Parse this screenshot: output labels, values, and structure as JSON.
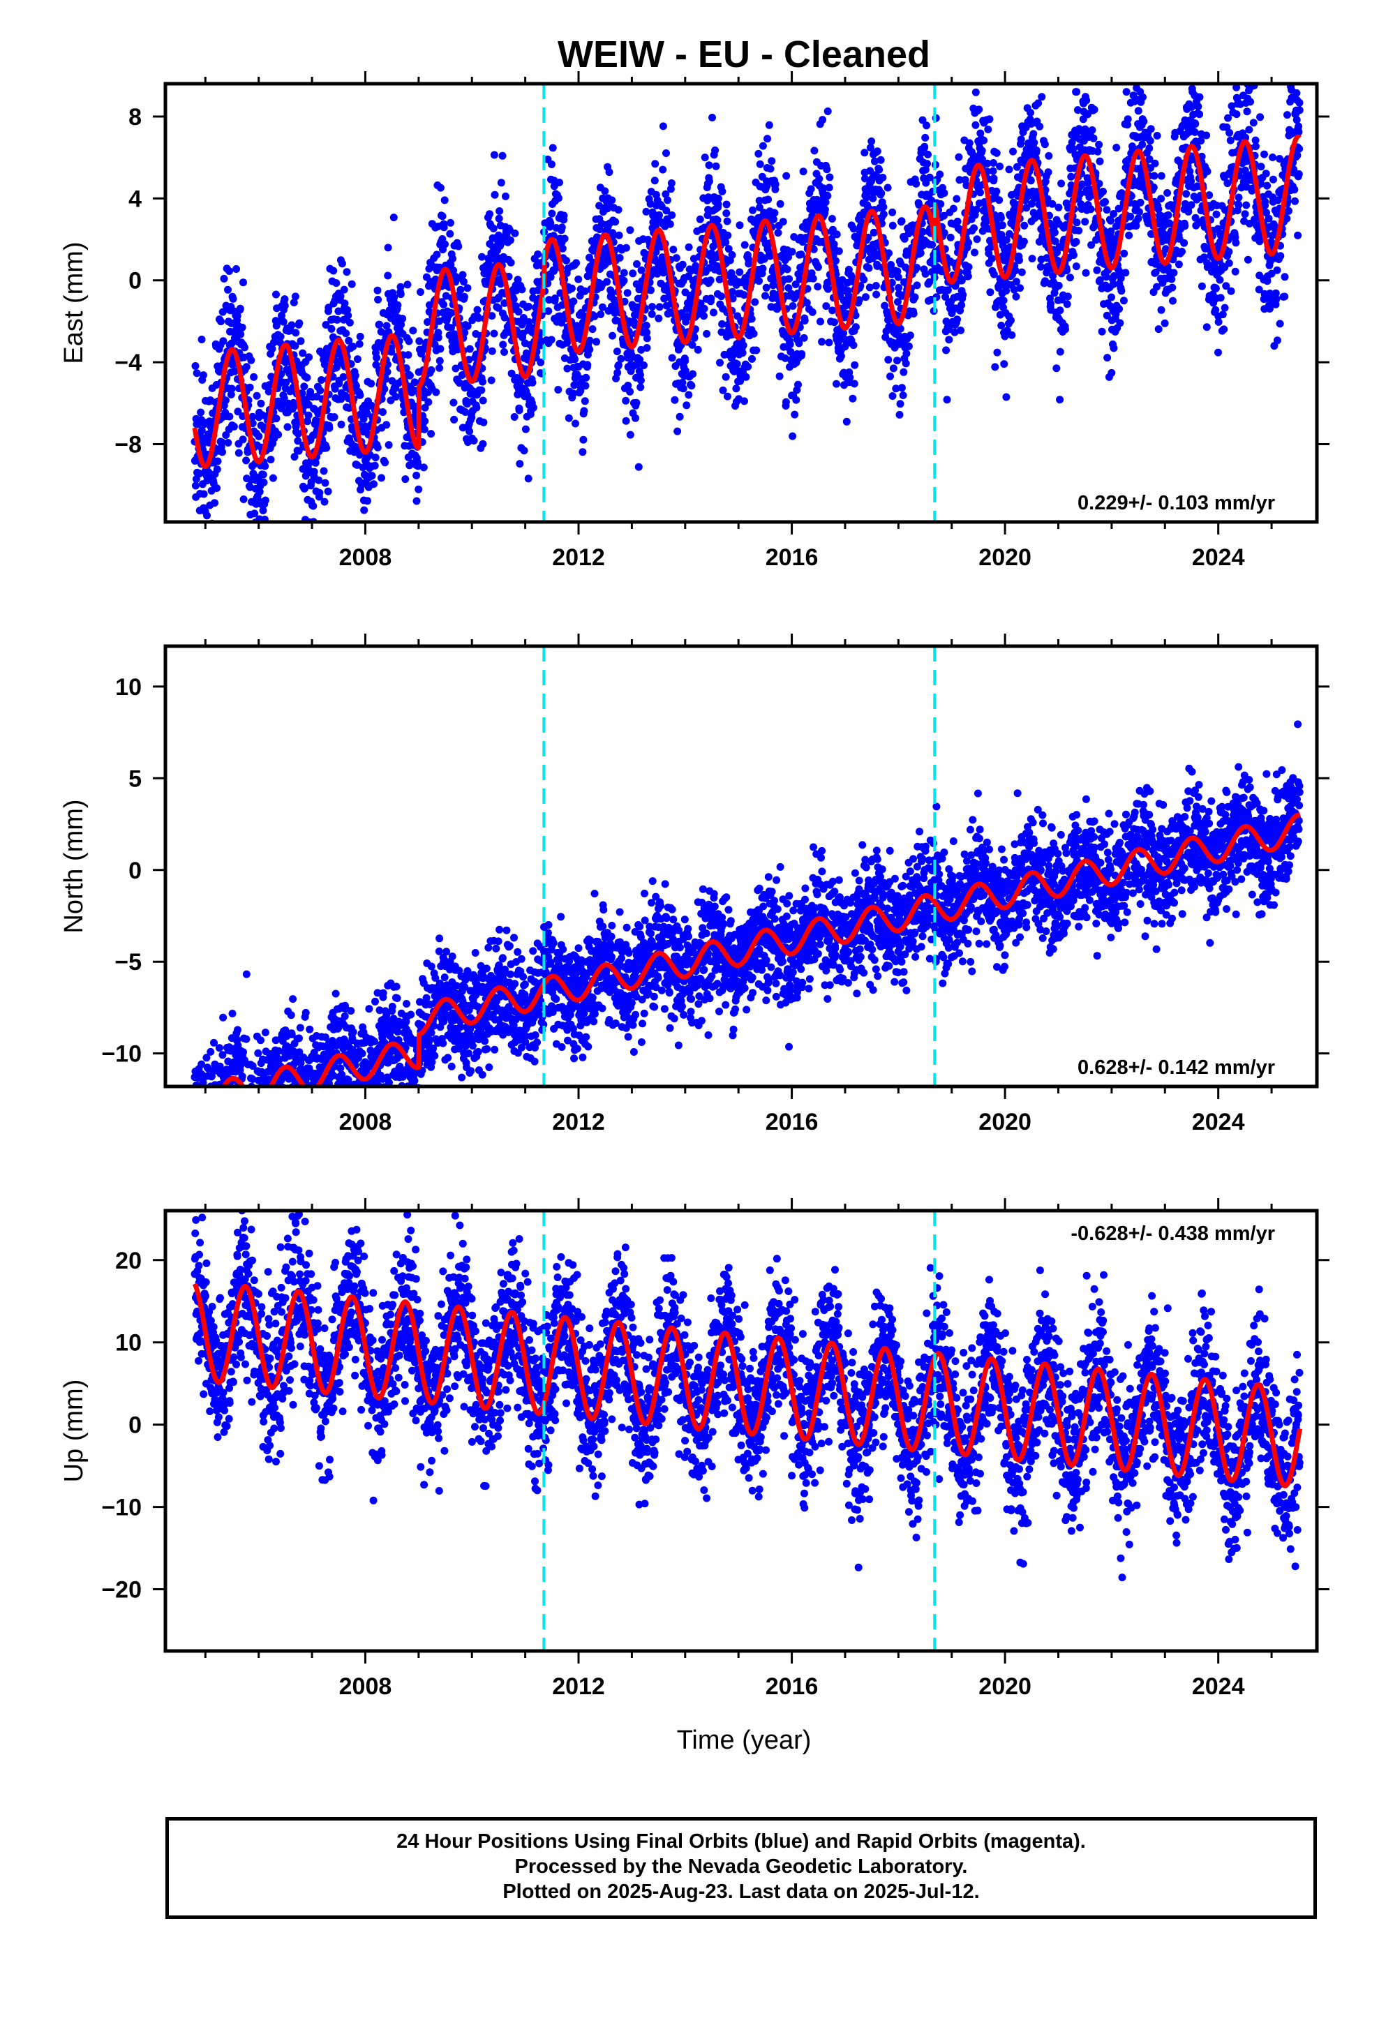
{
  "title": "WEIW  - EU - Cleaned",
  "x_axis_label": "Time (year)",
  "footer": {
    "line1": "24 Hour Positions Using Final Orbits (blue) and Rapid Orbits (magenta).",
    "line2": "Processed by the Nevada Geodetic Laboratory.",
    "line3": "Plotted on 2025-Aug-23. Last data on 2025-Jul-12."
  },
  "colors": {
    "data_points": "#0000ff",
    "model_fit": "#ff0000",
    "equipment_change": "#00e5ee"
  },
  "chart_data": [
    {
      "type": "scatter",
      "component": "East",
      "ylabel": "East (mm)",
      "xlim": [
        2004.25,
        2025.85
      ],
      "ylim": [
        -11.8,
        9.6
      ],
      "x_ticks": [
        2008,
        2012,
        2016,
        2020,
        2024
      ],
      "y_ticks": [
        -8,
        -4,
        0,
        4,
        8
      ],
      "rate_label": "0.229+/- 0.103 mm/yr",
      "rate_position": "bottom-right",
      "step_lines": [
        2011.35,
        2018.68
      ],
      "model": {
        "amplitude": 2.8,
        "phase": 0.25,
        "steps": [
          [
            2009.0,
            3.0
          ],
          [
            2011.35,
            1.0
          ],
          [
            2018.68,
            1.8
          ]
        ],
        "slope": 0.229,
        "offset": -4.0
      },
      "scatter": 2.0
    },
    {
      "type": "scatter",
      "component": "North",
      "ylabel": "North (mm)",
      "xlim": [
        2004.25,
        2025.85
      ],
      "ylim": [
        -11.8,
        12.2
      ],
      "x_ticks": [
        2008,
        2012,
        2016,
        2020,
        2024
      ],
      "y_ticks": [
        -10,
        -5,
        0,
        5,
        10
      ],
      "rate_label": "0.628+/- 0.142 mm/yr",
      "rate_position": "bottom-right",
      "step_lines": [
        2011.35,
        2018.68
      ],
      "model": {
        "amplitude": 0.8,
        "phase": 0.25,
        "steps": [
          [
            2009.0,
            1.8
          ]
        ],
        "slope": 0.628,
        "offset": -6.2
      },
      "scatter": 1.5
    },
    {
      "type": "scatter",
      "component": "Up",
      "ylabel": "Up (mm)",
      "xlim": [
        2004.25,
        2025.85
      ],
      "ylim": [
        -27.5,
        26.0
      ],
      "x_ticks": [
        2008,
        2012,
        2016,
        2020,
        2024
      ],
      "y_ticks": [
        -20,
        -10,
        0,
        10,
        20
      ],
      "rate_label": "-0.628+/- 0.438 mm/yr",
      "rate_position": "top-right",
      "step_lines": [
        2011.35,
        2018.68
      ],
      "model": {
        "amplitude": 6.0,
        "phase": 0.5,
        "steps": [],
        "slope": -0.628,
        "offset": 5.0
      },
      "scatter": 4.5
    }
  ]
}
